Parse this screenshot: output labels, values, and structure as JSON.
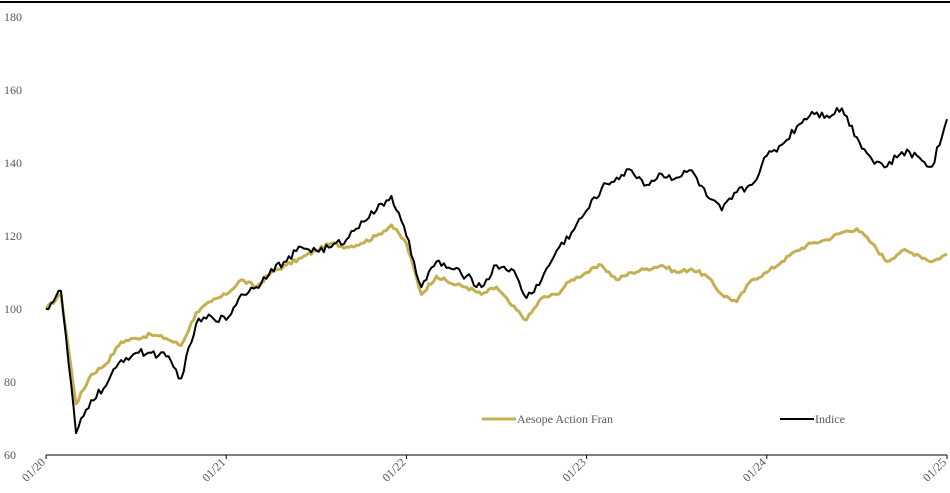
{
  "chart_data": {
    "type": "line",
    "title": "",
    "xlabel": "",
    "ylabel": "",
    "ylim": [
      60,
      180
    ],
    "yticks": [
      60,
      80,
      100,
      120,
      140,
      160,
      180
    ],
    "xticks": [
      "01/20",
      "01/21",
      "01/22",
      "01/23",
      "01/24",
      "01/25"
    ],
    "xlim": [
      "2020-01",
      "2025-01"
    ],
    "grid": false,
    "legend_position": "bottom-right",
    "series": [
      {
        "name": "Aesope Action Fran",
        "color": "#c4b053",
        "x": [
          "2020-01",
          "2020-02",
          "2020-03",
          "2020-04",
          "2020-05",
          "2020-06",
          "2020-07",
          "2020-08",
          "2020-09",
          "2020-10",
          "2020-11",
          "2020-12",
          "2021-01",
          "2021-02",
          "2021-03",
          "2021-04",
          "2021-05",
          "2021-06",
          "2021-07",
          "2021-08",
          "2021-09",
          "2021-10",
          "2021-11",
          "2021-12",
          "2022-01",
          "2022-02",
          "2022-03",
          "2022-04",
          "2022-05",
          "2022-06",
          "2022-07",
          "2022-08",
          "2022-09",
          "2022-10",
          "2022-11",
          "2022-12",
          "2023-01",
          "2023-02",
          "2023-03",
          "2023-04",
          "2023-05",
          "2023-06",
          "2023-07",
          "2023-08",
          "2023-09",
          "2023-10",
          "2023-11",
          "2023-12",
          "2024-01",
          "2024-02",
          "2024-03",
          "2024-04",
          "2024-05",
          "2024-06",
          "2024-07",
          "2024-08",
          "2024-09",
          "2024-10",
          "2024-11",
          "2024-12",
          "2025-01"
        ],
        "y": [
          100,
          104,
          74,
          82,
          85,
          91,
          92,
          93,
          92,
          90,
          99,
          102,
          104,
          108,
          106,
          110,
          112,
          114,
          116,
          118,
          117,
          118,
          120,
          123,
          118,
          104,
          109,
          107,
          106,
          104,
          106,
          101,
          97,
          103,
          104,
          108,
          110,
          112,
          108,
          110,
          111,
          112,
          110,
          111,
          109,
          104,
          102,
          108,
          110,
          113,
          116,
          118,
          119,
          121,
          122,
          118,
          113,
          116,
          115,
          113,
          115
        ]
      },
      {
        "name": "Indice",
        "color": "#000000",
        "x": [
          "2020-01",
          "2020-02",
          "2020-03",
          "2020-04",
          "2020-05",
          "2020-06",
          "2020-07",
          "2020-08",
          "2020-09",
          "2020-10",
          "2020-11",
          "2020-12",
          "2021-01",
          "2021-02",
          "2021-03",
          "2021-04",
          "2021-05",
          "2021-06",
          "2021-07",
          "2021-08",
          "2021-09",
          "2021-10",
          "2021-11",
          "2021-12",
          "2022-01",
          "2022-02",
          "2022-03",
          "2022-04",
          "2022-05",
          "2022-06",
          "2022-07",
          "2022-08",
          "2022-09",
          "2022-10",
          "2022-11",
          "2022-12",
          "2023-01",
          "2023-02",
          "2023-03",
          "2023-04",
          "2023-05",
          "2023-06",
          "2023-07",
          "2023-08",
          "2023-09",
          "2023-10",
          "2023-11",
          "2023-12",
          "2024-01",
          "2024-02",
          "2024-03",
          "2024-04",
          "2024-05",
          "2024-06",
          "2024-07",
          "2024-08",
          "2024-09",
          "2024-10",
          "2024-11",
          "2024-12",
          "2025-01"
        ],
        "y": [
          100,
          105,
          66,
          75,
          79,
          86,
          88,
          88,
          87,
          81,
          96,
          98,
          97,
          104,
          106,
          111,
          113,
          117,
          116,
          117,
          119,
          124,
          127,
          131,
          120,
          106,
          113,
          111,
          109,
          106,
          112,
          111,
          103,
          108,
          116,
          121,
          127,
          133,
          136,
          138,
          134,
          137,
          136,
          138,
          131,
          127,
          132,
          134,
          142,
          145,
          150,
          154,
          153,
          155,
          147,
          141,
          139,
          143,
          142,
          139,
          152
        ]
      }
    ]
  }
}
